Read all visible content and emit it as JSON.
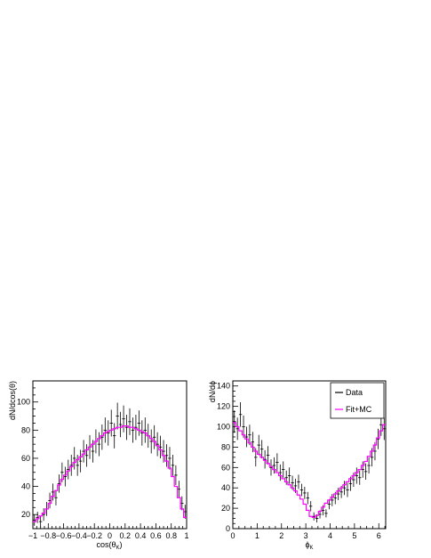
{
  "chart_data": [
    {
      "type": "line",
      "xlabel": "cos(θK)",
      "ylabel": "dN/dcos(θ)",
      "xlim": [
        -1,
        1
      ],
      "ylim": [
        10,
        115
      ],
      "x_ticks": [
        -1,
        -0.8,
        -0.6,
        -0.4,
        -0.2,
        0,
        0.2,
        0.4,
        0.6,
        0.8,
        1
      ],
      "y_ticks": [
        20,
        40,
        60,
        80,
        100
      ],
      "series": [
        {
          "name": "Data",
          "color": "#000000",
          "style": "points-with-error-bars",
          "x": [
            -0.98,
            -0.94,
            -0.9,
            -0.86,
            -0.82,
            -0.78,
            -0.74,
            -0.7,
            -0.66,
            -0.62,
            -0.58,
            -0.54,
            -0.5,
            -0.46,
            -0.42,
            -0.38,
            -0.34,
            -0.3,
            -0.26,
            -0.22,
            -0.18,
            -0.14,
            -0.1,
            -0.06,
            -0.02,
            0.02,
            0.06,
            0.1,
            0.14,
            0.18,
            0.22,
            0.26,
            0.3,
            0.34,
            0.38,
            0.42,
            0.46,
            0.5,
            0.54,
            0.58,
            0.62,
            0.66,
            0.7,
            0.74,
            0.78,
            0.82,
            0.86,
            0.9,
            0.94,
            0.98
          ],
          "y": [
            16,
            18,
            15,
            20,
            24,
            30,
            36,
            32,
            42,
            50,
            47,
            52,
            55,
            60,
            55,
            58,
            65,
            62,
            68,
            65,
            72,
            70,
            75,
            80,
            78,
            85,
            76,
            90,
            84,
            88,
            82,
            86,
            80,
            82,
            85,
            78,
            80,
            76,
            72,
            75,
            70,
            68,
            65,
            62,
            60,
            55,
            48,
            38,
            28,
            22
          ],
          "err": [
            4,
            4,
            4,
            4.5,
            5,
            5.5,
            6,
            5.5,
            6.5,
            7,
            7,
            7,
            7.5,
            8,
            7.5,
            8,
            8,
            8,
            8.5,
            8,
            8.5,
            8.5,
            9,
            9,
            9,
            9.5,
            9,
            9.5,
            9,
            9.5,
            9,
            9.5,
            9,
            9,
            9,
            9,
            9,
            8.5,
            8.5,
            8.5,
            8.5,
            8,
            8,
            8,
            8,
            7.5,
            7,
            6,
            5,
            5
          ]
        },
        {
          "name": "Fit+MC",
          "color": "#ff00ff",
          "style": "histogram",
          "x": [
            -0.98,
            -0.94,
            -0.9,
            -0.86,
            -0.82,
            -0.78,
            -0.74,
            -0.7,
            -0.66,
            -0.62,
            -0.58,
            -0.54,
            -0.5,
            -0.46,
            -0.42,
            -0.38,
            -0.34,
            -0.3,
            -0.26,
            -0.22,
            -0.18,
            -0.14,
            -0.1,
            -0.06,
            -0.02,
            0.02,
            0.06,
            0.1,
            0.14,
            0.18,
            0.22,
            0.26,
            0.3,
            0.34,
            0.38,
            0.42,
            0.46,
            0.5,
            0.54,
            0.58,
            0.62,
            0.66,
            0.7,
            0.74,
            0.78,
            0.82,
            0.86,
            0.9,
            0.94,
            0.98
          ],
          "y": [
            15,
            17,
            19,
            21,
            24,
            28,
            33,
            37,
            41,
            45,
            48,
            51,
            54,
            57,
            59,
            61,
            63,
            66,
            68,
            70,
            72,
            74,
            76,
            78,
            79,
            80,
            81,
            82,
            82,
            83,
            83,
            82,
            82,
            81,
            80,
            79,
            78,
            76,
            74,
            72,
            69,
            66,
            62,
            58,
            53,
            47,
            40,
            32,
            24,
            18
          ]
        }
      ]
    },
    {
      "type": "line",
      "xlabel": "ϕK",
      "ylabel": "dN/dϕ",
      "xlim": [
        0,
        6.283
      ],
      "ylim": [
        0,
        145
      ],
      "x_ticks": [
        0,
        1,
        2,
        3,
        4,
        5,
        6
      ],
      "y_ticks": [
        0,
        20,
        40,
        60,
        80,
        100,
        120,
        140
      ],
      "legend": {
        "position": "top-right",
        "entries": [
          "Data",
          "Fit+MC"
        ]
      },
      "series": [
        {
          "name": "Data",
          "color": "#000000",
          "style": "points-with-error-bars",
          "x": [
            0.063,
            0.189,
            0.314,
            0.44,
            0.565,
            0.691,
            0.817,
            0.942,
            1.068,
            1.194,
            1.319,
            1.445,
            1.571,
            1.696,
            1.822,
            1.948,
            2.073,
            2.199,
            2.325,
            2.45,
            2.576,
            2.702,
            2.827,
            2.953,
            3.079,
            3.204,
            3.33,
            3.456,
            3.581,
            3.707,
            3.833,
            3.958,
            4.084,
            4.21,
            4.335,
            4.461,
            4.587,
            4.712,
            4.838,
            4.964,
            5.089,
            5.215,
            5.341,
            5.466,
            5.592,
            5.718,
            5.843,
            5.969,
            6.095,
            6.22
          ],
          "y": [
            105,
            98,
            112,
            100,
            90,
            92,
            85,
            70,
            82,
            78,
            68,
            72,
            60,
            62,
            65,
            55,
            58,
            50,
            52,
            45,
            42,
            46,
            38,
            35,
            30,
            22,
            12,
            10,
            14,
            18,
            15,
            24,
            28,
            30,
            34,
            36,
            40,
            38,
            44,
            48,
            52,
            50,
            58,
            56,
            62,
            70,
            76,
            88,
            102,
            98
          ],
          "err": [
            11,
            11,
            12,
            11,
            10,
            10,
            10,
            9,
            10,
            9,
            9,
            9,
            8,
            8,
            9,
            8,
            8,
            7,
            8,
            7,
            7,
            7,
            6,
            6,
            6,
            5,
            4,
            4,
            4,
            5,
            4,
            5,
            6,
            6,
            6,
            6,
            7,
            7,
            7,
            7,
            8,
            7,
            8,
            8,
            8,
            9,
            9,
            10,
            11,
            11
          ]
        },
        {
          "name": "Fit+MC",
          "color": "#ff00ff",
          "style": "histogram",
          "x": [
            0.063,
            0.189,
            0.314,
            0.44,
            0.565,
            0.691,
            0.817,
            0.942,
            1.068,
            1.194,
            1.319,
            1.445,
            1.571,
            1.696,
            1.822,
            1.948,
            2.073,
            2.199,
            2.325,
            2.45,
            2.576,
            2.702,
            2.827,
            2.953,
            3.079,
            3.204,
            3.33,
            3.456,
            3.581,
            3.707,
            3.833,
            3.958,
            4.084,
            4.21,
            4.335,
            4.461,
            4.587,
            4.712,
            4.838,
            4.964,
            5.089,
            5.215,
            5.341,
            5.466,
            5.592,
            5.718,
            5.843,
            5.969,
            6.095,
            6.22
          ],
          "y": [
            104,
            100,
            96,
            92,
            88,
            84,
            80,
            76,
            73,
            70,
            67,
            64,
            61,
            58,
            55,
            52,
            49,
            46,
            43,
            40,
            37,
            33,
            29,
            24,
            18,
            12,
            11,
            13,
            17,
            21,
            25,
            28,
            31,
            34,
            37,
            40,
            43,
            46,
            49,
            52,
            55,
            58,
            62,
            66,
            71,
            76,
            82,
            89,
            96,
            102
          ]
        }
      ]
    }
  ]
}
